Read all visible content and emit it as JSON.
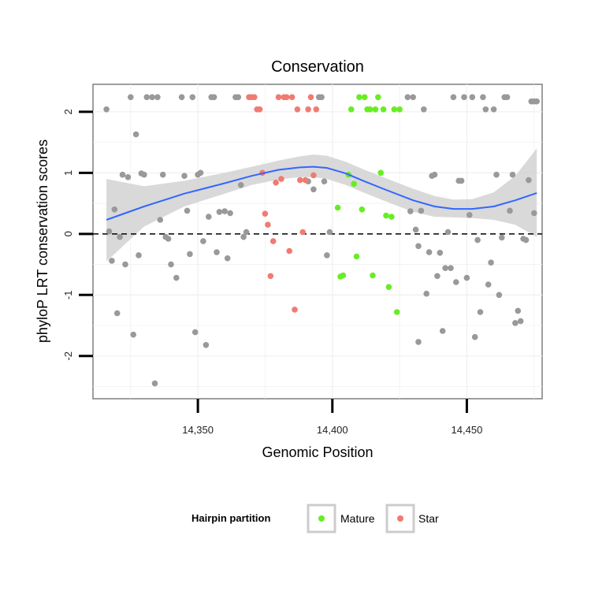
{
  "chart_data": {
    "type": "scatter",
    "title": "Conservation",
    "xlabel": "Genomic Position",
    "ylabel": "phyloP LRT conservation scores",
    "xlim": [
      14311,
      14478
    ],
    "ylim": [
      -2.7,
      2.45
    ],
    "x_ticks": [
      14350,
      14400,
      14450
    ],
    "x_tick_labels": [
      "14,350",
      "14,400",
      "14,450"
    ],
    "y_ticks": [
      -2,
      -1,
      0,
      1,
      2
    ],
    "y_tick_labels": [
      "-2",
      "-1",
      "0",
      "1",
      "2"
    ],
    "grid": true,
    "reference_line": {
      "y": 0,
      "style": "dashed",
      "color": "#000000"
    },
    "legend": {
      "title": "Hairpin partition",
      "placement": "bottom",
      "entries": [
        {
          "label": "Mature",
          "color": "#66ee22"
        },
        {
          "label": "Star",
          "color": "#f07b72"
        }
      ]
    },
    "colors": {
      "other": "#999999",
      "mature": "#66ee22",
      "star": "#f07b72",
      "smooth": "#3366ff",
      "band": "#d2d2d2"
    },
    "series": [
      {
        "group": "other",
        "points": [
          [
            14316,
            2.04
          ],
          [
            14317,
            0.04
          ],
          [
            14318,
            -0.44
          ],
          [
            14319,
            0.4
          ],
          [
            14320,
            -1.3
          ],
          [
            14321,
            -0.05
          ],
          [
            14322,
            0.97
          ],
          [
            14323,
            -0.5
          ],
          [
            14324,
            0.93
          ],
          [
            14325,
            2.24
          ],
          [
            14326,
            -1.65
          ],
          [
            14327,
            1.63
          ],
          [
            14328,
            -0.35
          ],
          [
            14329,
            0.99
          ],
          [
            14330,
            0.97
          ],
          [
            14331,
            2.24
          ],
          [
            14333,
            2.24
          ],
          [
            14334,
            -2.45
          ],
          [
            14335,
            2.24
          ],
          [
            14336,
            0.23
          ],
          [
            14337,
            0.97
          ],
          [
            14338,
            -0.05
          ],
          [
            14339,
            -0.08
          ],
          [
            14340,
            -0.5
          ],
          [
            14342,
            -0.72
          ],
          [
            14344,
            2.24
          ],
          [
            14345,
            0.95
          ],
          [
            14346,
            0.38
          ],
          [
            14347,
            -0.33
          ],
          [
            14348,
            2.24
          ],
          [
            14349,
            -1.61
          ],
          [
            14350,
            0.97
          ],
          [
            14351,
            1.0
          ],
          [
            14352,
            -0.12
          ],
          [
            14353,
            -1.82
          ],
          [
            14354,
            0.28
          ],
          [
            14355,
            2.24
          ],
          [
            14356,
            2.24
          ],
          [
            14357,
            -0.3
          ],
          [
            14358,
            0.36
          ],
          [
            14360,
            0.37
          ],
          [
            14361,
            -0.4
          ],
          [
            14362,
            0.34
          ],
          [
            14364,
            2.24
          ],
          [
            14365,
            2.24
          ],
          [
            14366,
            0.8
          ],
          [
            14367,
            -0.05
          ],
          [
            14368,
            0.03
          ],
          [
            14391,
            0.86
          ],
          [
            14393,
            0.73
          ],
          [
            14395,
            2.24
          ],
          [
            14396,
            2.24
          ],
          [
            14397,
            0.86
          ],
          [
            14398,
            -0.35
          ],
          [
            14399,
            0.03
          ],
          [
            14428,
            2.24
          ],
          [
            14429,
            0.37
          ],
          [
            14430,
            2.24
          ],
          [
            14431,
            0.07
          ],
          [
            14432,
            -0.2
          ],
          [
            14432,
            -1.77
          ],
          [
            14433,
            0.38
          ],
          [
            14434,
            2.04
          ],
          [
            14435,
            -0.98
          ],
          [
            14436,
            -0.3
          ],
          [
            14437,
            0.95
          ],
          [
            14438,
            0.97
          ],
          [
            14439,
            -0.69
          ],
          [
            14440,
            -0.31
          ],
          [
            14441,
            -1.59
          ],
          [
            14442,
            -0.56
          ],
          [
            14443,
            0.03
          ],
          [
            14444,
            -0.56
          ],
          [
            14445,
            2.24
          ],
          [
            14446,
            -0.79
          ],
          [
            14447,
            0.87
          ],
          [
            14448,
            0.87
          ],
          [
            14449,
            2.24
          ],
          [
            14450,
            -0.72
          ],
          [
            14451,
            0.31
          ],
          [
            14452,
            2.24
          ],
          [
            14453,
            -1.69
          ],
          [
            14454,
            -0.1
          ],
          [
            14455,
            -1.28
          ],
          [
            14456,
            2.24
          ],
          [
            14457,
            2.04
          ],
          [
            14458,
            -0.83
          ],
          [
            14459,
            -0.47
          ],
          [
            14460,
            2.04
          ],
          [
            14461,
            0.97
          ],
          [
            14462,
            -1.0
          ],
          [
            14463,
            -0.06
          ],
          [
            14464,
            2.24
          ],
          [
            14465,
            2.24
          ],
          [
            14466,
            0.38
          ],
          [
            14467,
            0.97
          ],
          [
            14468,
            -1.46
          ],
          [
            14469,
            -1.26
          ],
          [
            14470,
            -1.43
          ],
          [
            14471,
            -0.08
          ],
          [
            14472,
            -0.1
          ],
          [
            14473,
            0.88
          ],
          [
            14474,
            2.17
          ],
          [
            14475,
            0.34
          ],
          [
            14475,
            2.17
          ],
          [
            14476,
            2.17
          ]
        ]
      },
      {
        "group": "mature",
        "points": [
          [
            14402,
            0.43
          ],
          [
            14403,
            -0.7
          ],
          [
            14404,
            -0.68
          ],
          [
            14406,
            0.97
          ],
          [
            14407,
            2.04
          ],
          [
            14408,
            0.82
          ],
          [
            14409,
            -0.37
          ],
          [
            14410,
            2.24
          ],
          [
            14411,
            0.4
          ],
          [
            14412,
            2.24
          ],
          [
            14413,
            2.04
          ],
          [
            14414,
            2.04
          ],
          [
            14415,
            -0.68
          ],
          [
            14416,
            2.04
          ],
          [
            14417,
            2.24
          ],
          [
            14418,
            1.0
          ],
          [
            14419,
            2.04
          ],
          [
            14420,
            0.3
          ],
          [
            14421,
            -0.87
          ],
          [
            14422,
            0.28
          ],
          [
            14423,
            2.04
          ],
          [
            14424,
            -1.28
          ],
          [
            14425,
            2.04
          ]
        ]
      },
      {
        "group": "star",
        "points": [
          [
            14369,
            2.24
          ],
          [
            14370,
            2.24
          ],
          [
            14371,
            2.24
          ],
          [
            14372,
            2.04
          ],
          [
            14373,
            2.04
          ],
          [
            14374,
            1.0
          ],
          [
            14375,
            0.33
          ],
          [
            14376,
            0.15
          ],
          [
            14377,
            -0.69
          ],
          [
            14378,
            -0.12
          ],
          [
            14379,
            0.84
          ],
          [
            14380,
            2.24
          ],
          [
            14381,
            0.9
          ],
          [
            14382,
            2.24
          ],
          [
            14383,
            2.24
          ],
          [
            14384,
            -0.28
          ],
          [
            14385,
            2.24
          ],
          [
            14386,
            -1.24
          ],
          [
            14387,
            2.04
          ],
          [
            14388,
            0.88
          ],
          [
            14389,
            0.03
          ],
          [
            14390,
            0.88
          ],
          [
            14391,
            2.04
          ],
          [
            14392,
            2.24
          ],
          [
            14393,
            0.96
          ],
          [
            14394,
            2.04
          ]
        ]
      }
    ],
    "smooth": {
      "x": [
        14316,
        14330,
        14345,
        14360,
        14370,
        14380,
        14388,
        14393,
        14398,
        14405,
        14412,
        14420,
        14430,
        14438,
        14445,
        14452,
        14460,
        14468,
        14476
      ],
      "y": [
        0.23,
        0.45,
        0.66,
        0.83,
        0.95,
        1.05,
        1.09,
        1.1,
        1.08,
        0.99,
        0.86,
        0.72,
        0.55,
        0.45,
        0.41,
        0.41,
        0.45,
        0.55,
        0.67
      ],
      "lower": [
        -0.45,
        0.12,
        0.45,
        0.66,
        0.8,
        0.89,
        0.93,
        0.93,
        0.9,
        0.8,
        0.67,
        0.53,
        0.36,
        0.28,
        0.27,
        0.26,
        0.23,
        0.15,
        -0.05
      ],
      "upper": [
        0.9,
        0.78,
        0.87,
        1.0,
        1.1,
        1.2,
        1.27,
        1.3,
        1.28,
        1.18,
        1.05,
        0.91,
        0.74,
        0.62,
        0.56,
        0.57,
        0.68,
        0.95,
        1.4
      ]
    }
  }
}
